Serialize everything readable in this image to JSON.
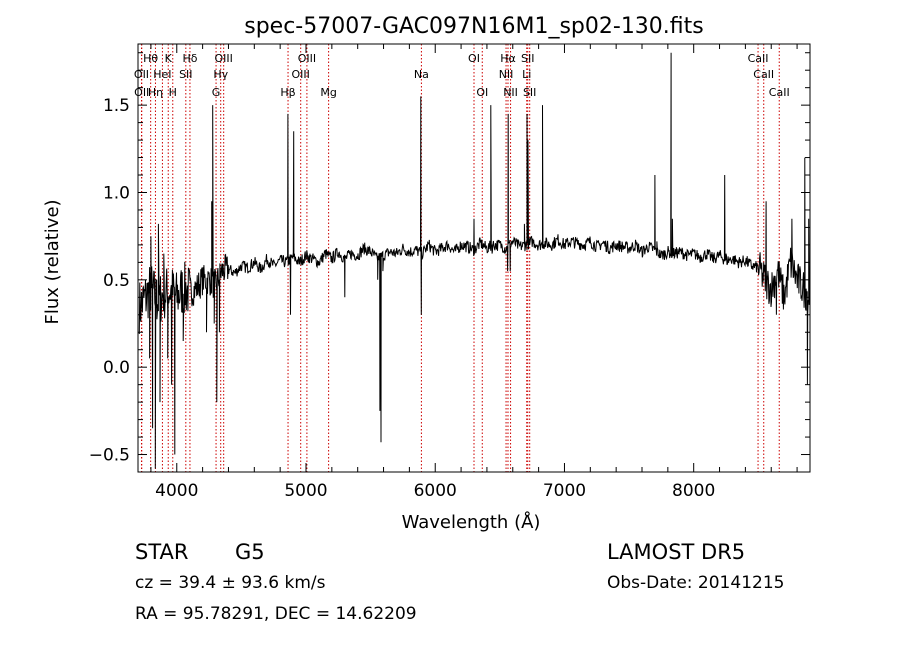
{
  "chart_data": {
    "type": "line",
    "title": "spec-57007-GAC097N16M1_sp02-130.fits",
    "xlabel": "Wavelength (Å)",
    "ylabel": "Flux (relative)",
    "xlim": [
      3700,
      8900
    ],
    "ylim": [
      -0.6,
      1.85
    ],
    "x_ticks": [
      4000,
      5000,
      6000,
      7000,
      8000
    ],
    "y_ticks": [
      -0.5,
      0.0,
      0.5,
      1.0,
      1.5
    ],
    "x_tick_labels": [
      "4000",
      "5000",
      "6000",
      "7000",
      "8000"
    ],
    "y_tick_labels": [
      "−0.5",
      "0.0",
      "0.5",
      "1.0",
      "1.5"
    ],
    "grid": false,
    "line_color": "#000000",
    "marker_color": "#cc0000",
    "spectral_lines": [
      {
        "label": "Hθ",
        "wavelength": 3798,
        "row": 1
      },
      {
        "label": "K",
        "wavelength": 3934,
        "row": 1
      },
      {
        "label": "Hδ",
        "wavelength": 4102,
        "row": 1
      },
      {
        "label": "OIII",
        "wavelength": 4363,
        "row": 1
      },
      {
        "label": "OIII",
        "wavelength": 5007,
        "row": 1
      },
      {
        "label": "OI",
        "wavelength": 6300,
        "row": 1
      },
      {
        "label": "Hα",
        "wavelength": 6563,
        "row": 1
      },
      {
        "label": "SII",
        "wavelength": 6716,
        "row": 1
      },
      {
        "label": "CaII",
        "wavelength": 8498,
        "row": 1
      },
      {
        "label": "OII",
        "wavelength": 3727,
        "row": 2
      },
      {
        "label": "HeI",
        "wavelength": 3889,
        "row": 2
      },
      {
        "label": "SII",
        "wavelength": 4070,
        "row": 2
      },
      {
        "label": "Hγ",
        "wavelength": 4340,
        "row": 2
      },
      {
        "label": "OIII",
        "wavelength": 4959,
        "row": 2
      },
      {
        "label": "Na",
        "wavelength": 5893,
        "row": 2
      },
      {
        "label": "NII",
        "wavelength": 6548,
        "row": 2
      },
      {
        "label": "CaII",
        "wavelength": 8542,
        "row": 2
      },
      {
        "label": "OII",
        "wavelength": 3729,
        "row": 3
      },
      {
        "label": "Hη",
        "wavelength": 3835,
        "row": 3
      },
      {
        "label": "H",
        "wavelength": 3969,
        "row": 3
      },
      {
        "label": "G",
        "wavelength": 4304,
        "row": 3
      },
      {
        "label": "Hβ",
        "wavelength": 4861,
        "row": 3
      },
      {
        "label": "Mg",
        "wavelength": 5175,
        "row": 3
      },
      {
        "label": "OI",
        "wavelength": 6364,
        "row": 3
      },
      {
        "label": "NII",
        "wavelength": 6583,
        "row": 3
      },
      {
        "label": "SII",
        "wavelength": 6731,
        "row": 3
      },
      {
        "label": "CaII",
        "wavelength": 8662,
        "row": 3
      },
      {
        "label": "Li",
        "wavelength": 6708,
        "row": 2
      }
    ],
    "series": [
      {
        "x": [
          3720,
          3760,
          3800,
          3850,
          3900,
          3950,
          4000,
          4050,
          4100,
          4150,
          4200,
          4250,
          4300,
          4350,
          4400,
          4450,
          4500,
          4550,
          4600,
          4650,
          4700,
          4750,
          4800,
          4850,
          4900,
          4950,
          5000,
          5050,
          5100,
          5150,
          5200,
          5250,
          5300,
          5350,
          5400,
          5450,
          5500,
          5550,
          5600,
          5650,
          5700,
          5750,
          5800,
          5850,
          5900,
          5950,
          6000,
          6050,
          6100,
          6150,
          6200,
          6250,
          6300,
          6350,
          6400,
          6450,
          6500,
          6550,
          6600,
          6650,
          6700,
          6750,
          6800,
          6850,
          6900,
          6950,
          7000,
          7050,
          7100,
          7150,
          7200,
          7250,
          7300,
          7350,
          7400,
          7450,
          7500,
          7550,
          7600,
          7650,
          7700,
          7750,
          7800,
          7850,
          7900,
          7950,
          8000,
          8050,
          8100,
          8150,
          8200,
          8250,
          8300,
          8350,
          8400,
          8450,
          8500,
          8550,
          8600,
          8650,
          8700,
          8750,
          8800,
          8850,
          8890
        ],
        "y": [
          0.35,
          0.4,
          0.45,
          0.38,
          0.42,
          0.44,
          0.4,
          0.45,
          0.43,
          0.45,
          0.5,
          0.5,
          0.47,
          0.55,
          0.56,
          0.54,
          0.58,
          0.57,
          0.6,
          0.56,
          0.62,
          0.58,
          0.61,
          0.6,
          0.63,
          0.6,
          0.64,
          0.62,
          0.6,
          0.65,
          0.62,
          0.66,
          0.62,
          0.65,
          0.64,
          0.68,
          0.66,
          0.62,
          0.64,
          0.66,
          0.65,
          0.68,
          0.66,
          0.67,
          0.65,
          0.7,
          0.66,
          0.68,
          0.7,
          0.66,
          0.7,
          0.69,
          0.67,
          0.71,
          0.68,
          0.7,
          0.7,
          0.68,
          0.72,
          0.69,
          0.7,
          0.72,
          0.7,
          0.71,
          0.7,
          0.73,
          0.7,
          0.72,
          0.71,
          0.7,
          0.72,
          0.69,
          0.71,
          0.68,
          0.7,
          0.69,
          0.68,
          0.7,
          0.66,
          0.69,
          0.67,
          0.64,
          0.66,
          0.65,
          0.66,
          0.64,
          0.65,
          0.63,
          0.65,
          0.62,
          0.64,
          0.61,
          0.62,
          0.6,
          0.61,
          0.58,
          0.57,
          0.5,
          0.45,
          0.55,
          0.4,
          0.6,
          0.5,
          0.45,
          0.4
        ],
        "features": [
          {
            "x": 3790,
            "y": 0.05
          },
          {
            "x": 3800,
            "y": 0.75
          },
          {
            "x": 3813,
            "y": -0.35
          },
          {
            "x": 3834,
            "y": -0.58
          },
          {
            "x": 3845,
            "y": 0.5
          },
          {
            "x": 3858,
            "y": 0.82
          },
          {
            "x": 3870,
            "y": -0.2
          },
          {
            "x": 3900,
            "y": 0.65
          },
          {
            "x": 3930,
            "y": 0.05
          },
          {
            "x": 3960,
            "y": -0.1
          },
          {
            "x": 3985,
            "y": -0.5
          },
          {
            "x": 4050,
            "y": 0.15
          },
          {
            "x": 4230,
            "y": 0.2
          },
          {
            "x": 4270,
            "y": 0.95
          },
          {
            "x": 4278,
            "y": 1.5
          },
          {
            "x": 4290,
            "y": 0.25
          },
          {
            "x": 4310,
            "y": -0.2
          },
          {
            "x": 4330,
            "y": 0.2
          },
          {
            "x": 4860,
            "y": 1.45
          },
          {
            "x": 4880,
            "y": 0.3
          },
          {
            "x": 4905,
            "y": 1.35
          },
          {
            "x": 5300,
            "y": 0.4
          },
          {
            "x": 5555,
            "y": 0.5
          },
          {
            "x": 5572,
            "y": -0.25
          },
          {
            "x": 5580,
            "y": -0.43
          },
          {
            "x": 5595,
            "y": 0.55
          },
          {
            "x": 5888,
            "y": 1.55
          },
          {
            "x": 5892,
            "y": 0.3
          },
          {
            "x": 6300,
            "y": 0.85
          },
          {
            "x": 6430,
            "y": 1.5
          },
          {
            "x": 6440,
            "y": 0.65
          },
          {
            "x": 6560,
            "y": 0.55
          },
          {
            "x": 6565,
            "y": 1.45
          },
          {
            "x": 6580,
            "y": 0.55
          },
          {
            "x": 6690,
            "y": 0.82
          },
          {
            "x": 6710,
            "y": 1.45
          },
          {
            "x": 6718,
            "y": 1.3
          },
          {
            "x": 6730,
            "y": 0.7
          },
          {
            "x": 6830,
            "y": 1.5
          },
          {
            "x": 6840,
            "y": 0.7
          },
          {
            "x": 7700,
            "y": 1.1
          },
          {
            "x": 7715,
            "y": 0.72
          },
          {
            "x": 7825,
            "y": 1.8
          },
          {
            "x": 7835,
            "y": 0.85
          },
          {
            "x": 8240,
            "y": 1.1
          },
          {
            "x": 8250,
            "y": 0.65
          },
          {
            "x": 8560,
            "y": 0.95
          },
          {
            "x": 8570,
            "y": 0.5
          },
          {
            "x": 8640,
            "y": 0.3
          },
          {
            "x": 8760,
            "y": 0.85
          },
          {
            "x": 8860,
            "y": 1.2
          },
          {
            "x": 8870,
            "y": 0.45
          },
          {
            "x": 8880,
            "y": -0.1
          },
          {
            "x": 8890,
            "y": 0.85
          }
        ]
      }
    ]
  },
  "info": {
    "object_type": "STAR",
    "subclass": "G5",
    "survey": "LAMOST DR5",
    "redshift_line": "cz = 39.4 ± 93.6 km/s",
    "obs_date": "Obs-Date: 20141215",
    "coords": "RA =  95.78291, DEC =  14.62209"
  }
}
